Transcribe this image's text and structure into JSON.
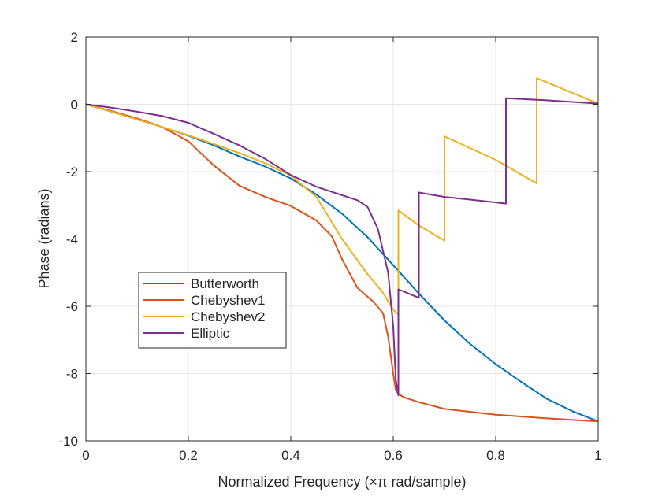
{
  "chart_data": {
    "type": "line",
    "title": "",
    "xlabel": "Normalized Frequency (×π rad/sample)",
    "ylabel": "Phase (radians)",
    "xlim": [
      0,
      1
    ],
    "ylim": [
      -10,
      2
    ],
    "xticks": [
      0,
      0.2,
      0.4,
      0.6,
      0.8,
      1
    ],
    "xtick_labels": [
      "0",
      "0.2",
      "0.4",
      "0.6",
      "0.8",
      "1"
    ],
    "yticks": [
      -10,
      -8,
      -6,
      -4,
      -2,
      0,
      2
    ],
    "ytick_labels": [
      "-10",
      "-8",
      "-6",
      "-4",
      "-2",
      "0",
      "2"
    ],
    "grid": true,
    "legend_position": "lower-left",
    "series": [
      {
        "name": "Butterworth",
        "color": "#0072BD",
        "x": [
          0,
          0.05,
          0.1,
          0.15,
          0.2,
          0.25,
          0.3,
          0.35,
          0.4,
          0.45,
          0.5,
          0.55,
          0.6,
          0.65,
          0.7,
          0.75,
          0.8,
          0.85,
          0.9,
          0.95,
          1.0
        ],
        "y": [
          0,
          -0.22,
          -0.45,
          -0.68,
          -0.93,
          -1.22,
          -1.55,
          -1.85,
          -2.2,
          -2.68,
          -3.25,
          -3.95,
          -4.78,
          -5.62,
          -6.42,
          -7.12,
          -7.72,
          -8.25,
          -8.75,
          -9.12,
          -9.42
        ]
      },
      {
        "name": "Chebyshev1",
        "color": "#D95319",
        "x": [
          0,
          0.05,
          0.1,
          0.15,
          0.2,
          0.25,
          0.3,
          0.35,
          0.4,
          0.45,
          0.48,
          0.5,
          0.53,
          0.56,
          0.58,
          0.59,
          0.6,
          0.605,
          0.61,
          0.62,
          0.65,
          0.7,
          0.8,
          0.9,
          1.0
        ],
        "y": [
          0,
          -0.2,
          -0.42,
          -0.68,
          -1.1,
          -1.82,
          -2.42,
          -2.75,
          -3.02,
          -3.45,
          -3.92,
          -4.6,
          -5.45,
          -5.85,
          -6.2,
          -6.9,
          -8.0,
          -8.5,
          -8.6,
          -8.7,
          -8.85,
          -9.05,
          -9.22,
          -9.33,
          -9.42
        ]
      },
      {
        "name": "Chebyshev2",
        "color": "#EDB120",
        "x": [
          0,
          0.05,
          0.1,
          0.15,
          0.2,
          0.25,
          0.3,
          0.35,
          0.4,
          0.45,
          0.5,
          0.55,
          0.58,
          0.6,
          0.61,
          0.61,
          0.65,
          0.7,
          0.7,
          0.75,
          0.8,
          0.88,
          0.88,
          1.0
        ],
        "y": [
          0,
          -0.22,
          -0.45,
          -0.68,
          -0.92,
          -1.18,
          -1.45,
          -1.75,
          -2.12,
          -2.75,
          -4.0,
          -5.05,
          -5.6,
          -6.1,
          -6.25,
          -3.15,
          -3.6,
          -4.05,
          -0.95,
          -1.3,
          -1.65,
          -2.35,
          0.78,
          0.02
        ]
      },
      {
        "name": "Elliptic",
        "color": "#7E2F8E",
        "x": [
          0,
          0.05,
          0.1,
          0.15,
          0.2,
          0.25,
          0.3,
          0.35,
          0.4,
          0.45,
          0.5,
          0.53,
          0.55,
          0.57,
          0.59,
          0.6,
          0.605,
          0.61,
          0.61,
          0.63,
          0.65,
          0.65,
          0.7,
          0.75,
          0.82,
          0.82,
          0.9,
          1.0
        ],
        "y": [
          0,
          -0.1,
          -0.22,
          -0.35,
          -0.55,
          -0.88,
          -1.22,
          -1.62,
          -2.1,
          -2.45,
          -2.7,
          -2.85,
          -3.05,
          -3.7,
          -5.0,
          -6.6,
          -8.2,
          -8.65,
          -5.5,
          -5.62,
          -5.75,
          -2.62,
          -2.75,
          -2.83,
          -2.95,
          0.18,
          0.12,
          0.02
        ]
      }
    ]
  }
}
